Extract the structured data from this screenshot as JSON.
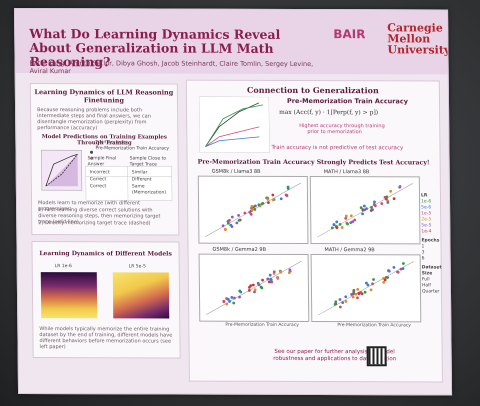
{
  "poster": {
    "title": "What Do Learning Dynamics Reveal About Generalization in LLM Math Reasoning?",
    "authors": "Katie Kang, Amrith Setlur, Dibya Ghosh, Jacob Steinhardt, Claire Tomlin, Sergey Levine, Aviral Kumar",
    "logo_bair": "BAIR",
    "logo_cmu": "Carnegie Mellon University"
  },
  "left_top": {
    "title": "Learning Dynamics of LLM Reasoning Finetuning",
    "intro": "Because reasoning problems include both intermediate steps and final answers, we can disentangle memorization (perplexity) from performance (accuracy)",
    "subtitle": "Model Predictions on Training Examples Through Training",
    "legend_train": "Train Accuracy",
    "legend_premem": "Pre-Memorization Train Accuracy",
    "table_head": [
      "Sample Final Answer",
      "Sample Close to Target Trace"
    ],
    "table_rows": [
      "Incorrect",
      "Correct",
      "Correct"
    ],
    "table_vals": [
      "Similar",
      "Different",
      "Same (Memorization)"
    ],
    "footnote1": "Models learn to memorize (with different progressions:",
    "footnote2": "1) First learning diverse correct solutions with diverse reasoning steps, then memorizing target trace (solid line)",
    "footnote3": "2) Directly memorizing target trace (dashed)"
  },
  "left_bottom": {
    "title": "Learning Dynamics of Different Models",
    "label_a": "LR 1e-6",
    "label_b": "LR 5e-5",
    "footnote": "While models typically memorize the entire training dataset by the end of training, different models have different behaviors before memorization occurs (see left paper)"
  },
  "right": {
    "title": "Connection to Generalization",
    "metric_title": "Pre-Memorization Train Accuracy",
    "metric_desc1": "Highest accuracy through training",
    "metric_desc2": "prior to memorization",
    "note": "Train accuracy is not predictive of test accuracy",
    "subtitle2": "Pre-Memorization Train Accuracy Strongly Predicts Test Accuracy!",
    "plots": [
      "GSM8k / Llama3 8B",
      "MATH / Llama3 8B",
      "GSM8k / Gemma2 9B",
      "MATH / Gemma2 9B"
    ],
    "xlabel": "Pre-Memorization Train Accuracy",
    "legend_lr": "LR",
    "lr_items": [
      "1e-6",
      "5e-6",
      "1e-5",
      "2e-5",
      "5e-5",
      "1e-4"
    ],
    "legend_epochs": "Epochs",
    "epoch_items": [
      "1",
      "3",
      "6"
    ],
    "legend_dataset": "Dataset Size",
    "dataset_items": [
      "Full",
      "Half",
      "Quarter"
    ],
    "footer1": "See our paper for further analysis on model",
    "footer2": "robustness and applications to data curation"
  }
}
